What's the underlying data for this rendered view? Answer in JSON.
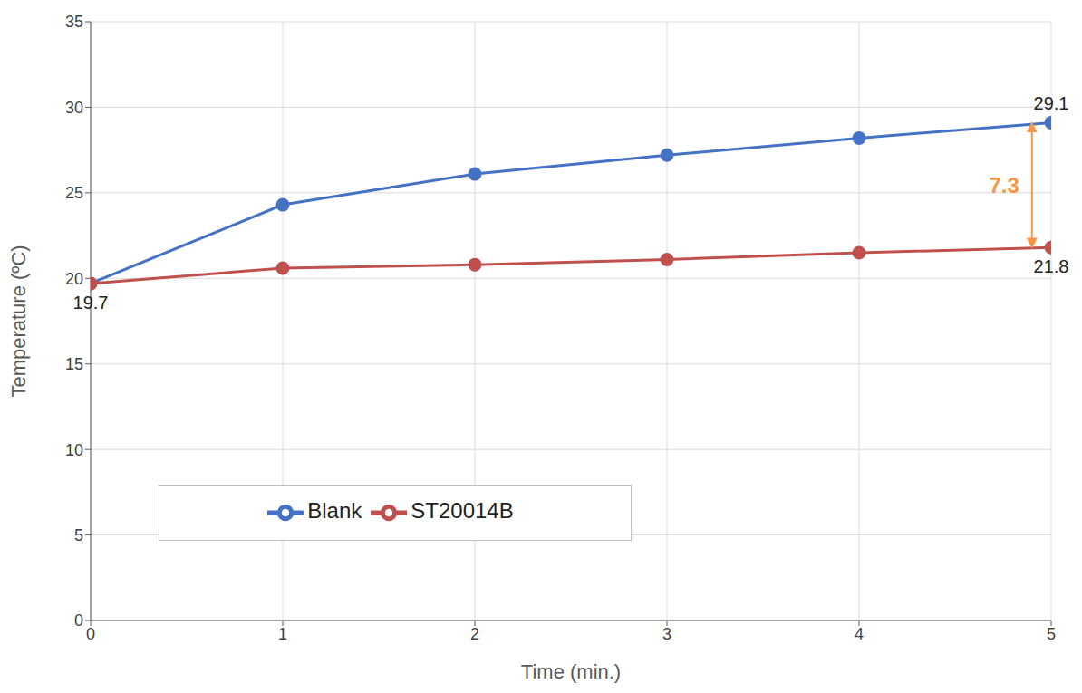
{
  "chart_data": {
    "type": "line",
    "x": [
      0,
      1,
      2,
      3,
      4,
      5
    ],
    "series": [
      {
        "name": "Blank",
        "color": "#4472c4",
        "marker": "circle",
        "values": [
          19.7,
          24.3,
          26.1,
          27.2,
          28.2,
          29.1
        ]
      },
      {
        "name": "ST20014B",
        "color": "#c0504d",
        "marker": "circle",
        "values": [
          19.7,
          20.6,
          20.8,
          21.1,
          21.5,
          21.8
        ]
      }
    ],
    "xlabel": "Time (min.)",
    "ylabel": "Temperature (ºC)",
    "xlim": [
      0,
      5
    ],
    "ylim": [
      0,
      35
    ],
    "xticks": [
      0,
      1,
      2,
      3,
      4,
      5
    ],
    "yticks": [
      0,
      5,
      10,
      15,
      20,
      25,
      30,
      35
    ],
    "grid": true,
    "legend": "lower left",
    "annotations": [
      {
        "text": "19.7",
        "x": 0,
        "y": 19.7
      },
      {
        "text": "29.1",
        "x": 5,
        "y": 29.1
      },
      {
        "text": "21.8",
        "x": 5,
        "y": 21.8
      },
      {
        "text": "7.3",
        "x": 4.9,
        "y": [
          21.8,
          29.1
        ],
        "color": "#f79646"
      }
    ]
  }
}
